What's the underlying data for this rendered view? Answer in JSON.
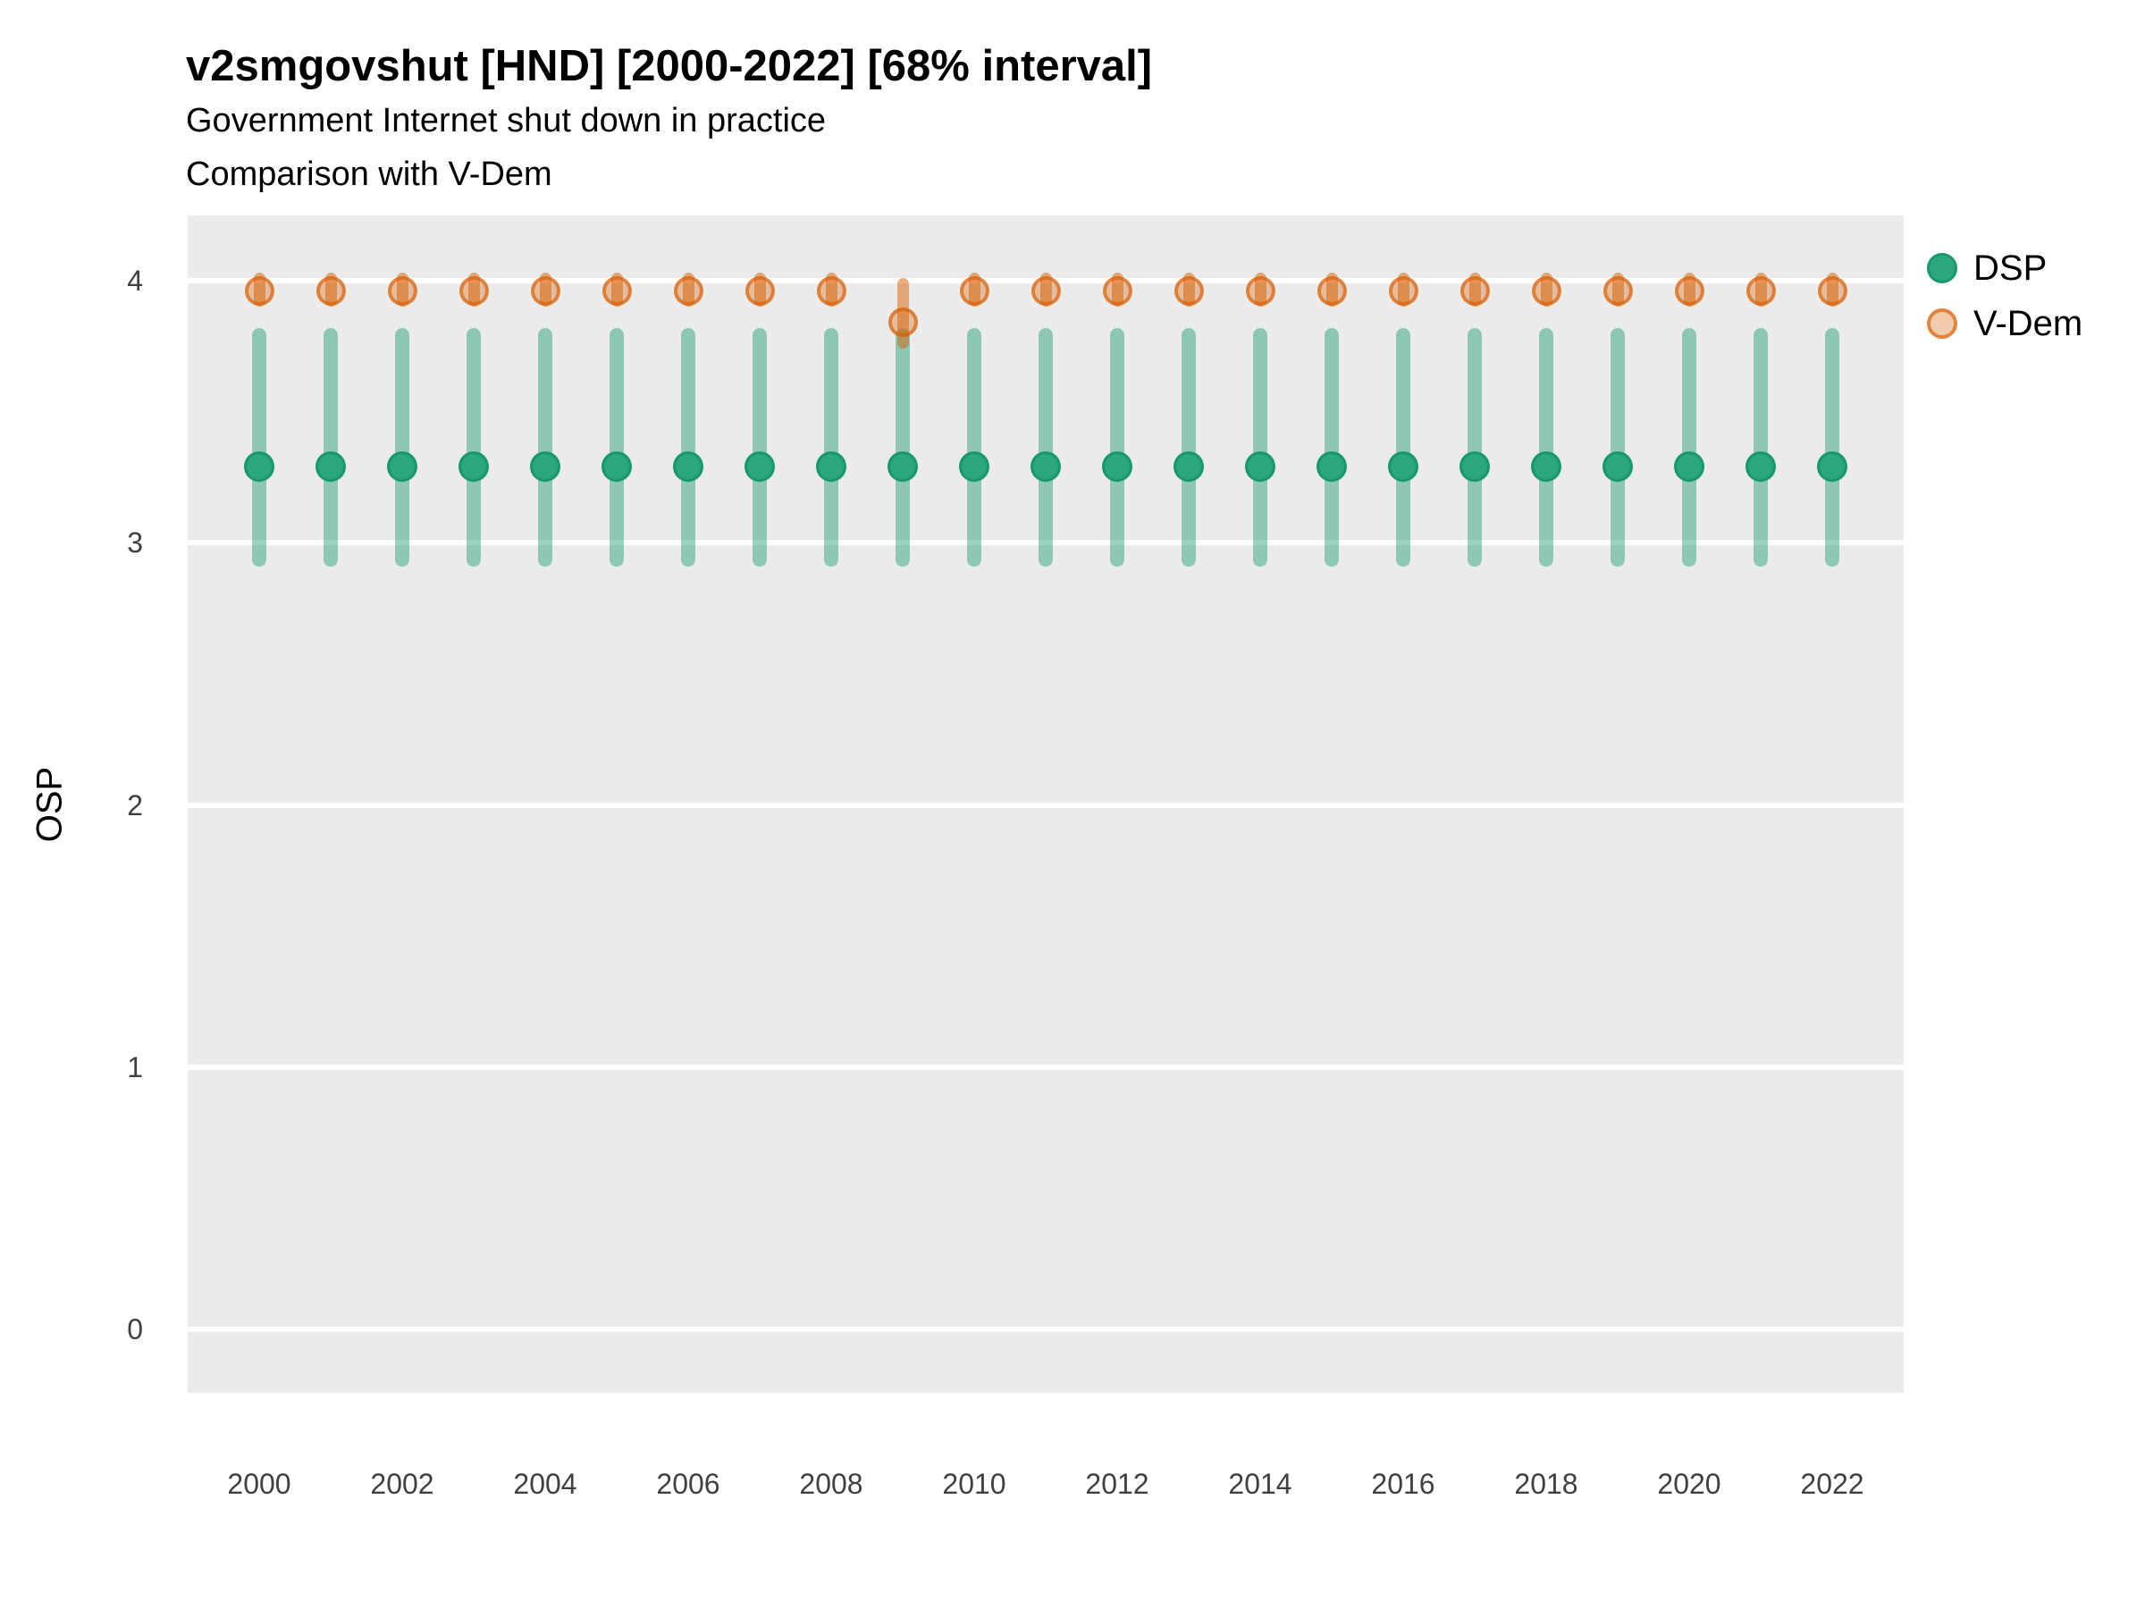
{
  "header": {
    "title": "v2smgovshut [HND] [2000-2022] [68% interval]",
    "subtitle1": "Government Internet shut down in practice",
    "subtitle2": "Comparison with V-Dem"
  },
  "chart_data": {
    "type": "scatter",
    "title": "v2smgovshut [HND] [2000-2022] [68% interval]",
    "subtitle": "Government Internet shut down in practice",
    "subtitle2": "Comparison with V-Dem",
    "xlabel": "",
    "ylabel": "OSP",
    "interval": "68%",
    "country": "HND",
    "grid": "horizontal-major",
    "legend_position": "right-top",
    "panel_background": "#EBEBEB",
    "ylim": [
      -0.24,
      4.25
    ],
    "y_ticks": [
      0,
      1,
      2,
      3,
      4
    ],
    "x_range": [
      2000,
      2022
    ],
    "x": [
      2000,
      2001,
      2002,
      2003,
      2004,
      2005,
      2006,
      2007,
      2008,
      2009,
      2010,
      2011,
      2012,
      2013,
      2014,
      2015,
      2016,
      2017,
      2018,
      2019,
      2020,
      2021,
      2022
    ],
    "x_tick_years": [
      2000,
      2002,
      2004,
      2006,
      2008,
      2010,
      2012,
      2014,
      2016,
      2018,
      2020,
      2022
    ],
    "x_tick_labels": [
      "2000",
      "2002",
      "2004",
      "2006",
      "2008",
      "2010",
      "2012",
      "2014",
      "2016",
      "2018",
      "2020",
      "2022"
    ],
    "series": [
      {
        "name": "DSP",
        "color": "#1B9E77",
        "values": [
          3.29,
          3.29,
          3.29,
          3.29,
          3.29,
          3.29,
          3.29,
          3.29,
          3.29,
          3.29,
          3.29,
          3.29,
          3.29,
          3.29,
          3.29,
          3.29,
          3.29,
          3.29,
          3.29,
          3.29,
          3.29,
          3.29,
          3.29
        ],
        "lo": [
          2.91,
          2.91,
          2.91,
          2.91,
          2.91,
          2.91,
          2.91,
          2.91,
          2.91,
          2.91,
          2.91,
          2.91,
          2.91,
          2.91,
          2.91,
          2.91,
          2.91,
          2.91,
          2.91,
          2.91,
          2.91,
          2.91,
          2.91
        ],
        "hi": [
          3.82,
          3.82,
          3.82,
          3.82,
          3.82,
          3.82,
          3.82,
          3.82,
          3.82,
          3.82,
          3.82,
          3.82,
          3.82,
          3.82,
          3.82,
          3.82,
          3.82,
          3.82,
          3.82,
          3.82,
          3.82,
          3.82,
          3.82
        ]
      },
      {
        "name": "V-Dem",
        "color": "#D95F02",
        "values": [
          3.96,
          3.96,
          3.96,
          3.96,
          3.96,
          3.96,
          3.96,
          3.96,
          3.96,
          3.84,
          3.96,
          3.96,
          3.96,
          3.96,
          3.96,
          3.96,
          3.96,
          3.96,
          3.96,
          3.96,
          3.96,
          3.96,
          3.96
        ],
        "lo": [
          3.9,
          3.9,
          3.9,
          3.9,
          3.9,
          3.9,
          3.9,
          3.9,
          3.9,
          3.74,
          3.9,
          3.9,
          3.9,
          3.9,
          3.9,
          3.9,
          3.9,
          3.9,
          3.9,
          3.9,
          3.9,
          3.9,
          3.9
        ],
        "hi": [
          4.03,
          4.03,
          4.03,
          4.03,
          4.03,
          4.03,
          4.03,
          4.03,
          4.03,
          4.01,
          4.03,
          4.03,
          4.03,
          4.03,
          4.03,
          4.03,
          4.03,
          4.03,
          4.03,
          4.03,
          4.03,
          4.03,
          4.03
        ]
      }
    ]
  }
}
